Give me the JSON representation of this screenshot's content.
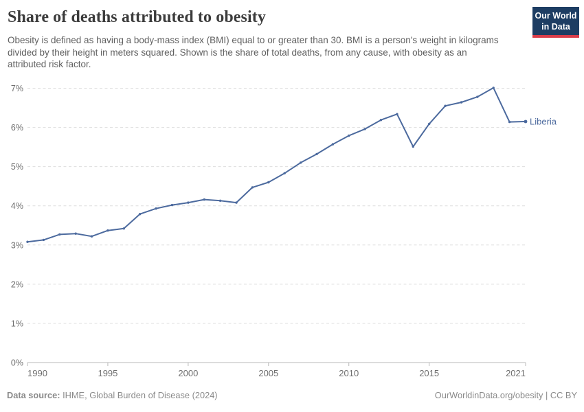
{
  "header": {
    "title": "Share of deaths attributed to obesity",
    "subtitle": "Obesity is defined as having a body-mass index (BMI) equal to or greater than 30. BMI is a person's weight in kilograms divided by their height in meters squared. Shown is the share of total deaths, from any cause, with obesity as an attributed risk factor.",
    "logo": {
      "line1": "Our World",
      "line2": "in Data",
      "bg_color": "#1d3d63",
      "accent_color": "#d93d4a"
    }
  },
  "chart_data": {
    "type": "line",
    "title": "Share of deaths attributed to obesity",
    "xlabel": "",
    "ylabel": "",
    "xlim": [
      1990,
      2021
    ],
    "ylim": [
      0,
      7
    ],
    "grid": "horizontal-dashed",
    "legend_position": "end-of-line-label",
    "x_ticks": [
      1990,
      1995,
      2000,
      2005,
      2010,
      2015,
      2021
    ],
    "y_ticks": [
      0,
      1,
      2,
      3,
      4,
      5,
      6,
      7
    ],
    "y_tick_labels": [
      "0%",
      "1%",
      "2%",
      "3%",
      "4%",
      "5%",
      "6%",
      "7%"
    ],
    "series": [
      {
        "name": "Liberia",
        "color": "#4c6a9e",
        "x": [
          1990,
          1991,
          1992,
          1993,
          1994,
          1995,
          1996,
          1997,
          1998,
          1999,
          2000,
          2001,
          2002,
          2003,
          2004,
          2005,
          2006,
          2007,
          2008,
          2009,
          2010,
          2011,
          2012,
          2013,
          2014,
          2015,
          2016,
          2017,
          2018,
          2019,
          2020,
          2021
        ],
        "values": [
          3.08,
          3.13,
          3.27,
          3.29,
          3.22,
          3.37,
          3.42,
          3.79,
          3.93,
          4.02,
          4.08,
          4.16,
          4.13,
          4.08,
          4.47,
          4.6,
          4.83,
          5.1,
          5.32,
          5.57,
          5.79,
          5.96,
          6.19,
          6.34,
          5.51,
          6.09,
          6.55,
          6.64,
          6.78,
          7.01,
          6.14,
          6.15
        ]
      }
    ]
  },
  "footer": {
    "source_label": "Data source:",
    "source_text": "IHME, Global Burden of Disease (2024)",
    "credit": "OurWorldinData.org/obesity | CC BY"
  },
  "style_colors": {
    "line": "#4c6a9e",
    "gridline": "#dedede",
    "axis": "#b8b8b8",
    "tick_text": "#6e6e6e",
    "title_text": "#3b3b3b",
    "subtitle_text": "#5f5f5f",
    "footer_text": "#8a8a8a"
  }
}
